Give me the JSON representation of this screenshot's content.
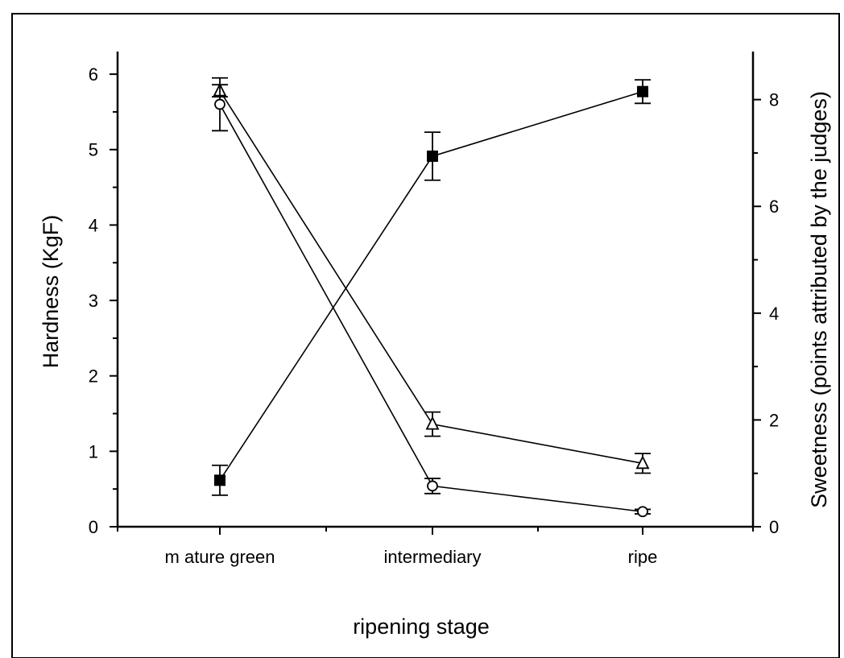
{
  "chart_data": {
    "type": "line",
    "categories": [
      "m ature green",
      "intermediary",
      "ripe"
    ],
    "xlabel": "ripening stage",
    "ylabel_left": "Hardness (KgF)",
    "ylabel_right": "Sweetness (points attributed by the judges)",
    "ylim_left": [
      0,
      6.3
    ],
    "ylim_right": [
      0,
      8.9
    ],
    "yticks_left": [
      0,
      1,
      2,
      3,
      4,
      5,
      6
    ],
    "yticks_right": [
      0,
      2,
      4,
      6,
      8
    ],
    "grid": false,
    "series": [
      {
        "name": "sweetness",
        "axis": "right",
        "marker": "filled-square",
        "values": [
          0.87,
          6.94,
          8.15
        ],
        "errors": [
          0.28,
          0.45,
          0.22
        ]
      },
      {
        "name": "hardness-open-triangle",
        "axis": "left",
        "marker": "open-triangle",
        "values": [
          5.78,
          1.36,
          0.84
        ],
        "errors": [
          0.08,
          0.16,
          0.13
        ]
      },
      {
        "name": "hardness-open-circle",
        "axis": "left",
        "marker": "open-circle",
        "values": [
          5.6,
          0.54,
          0.2
        ],
        "errors": [
          0.35,
          0.1,
          0.03
        ]
      }
    ]
  }
}
